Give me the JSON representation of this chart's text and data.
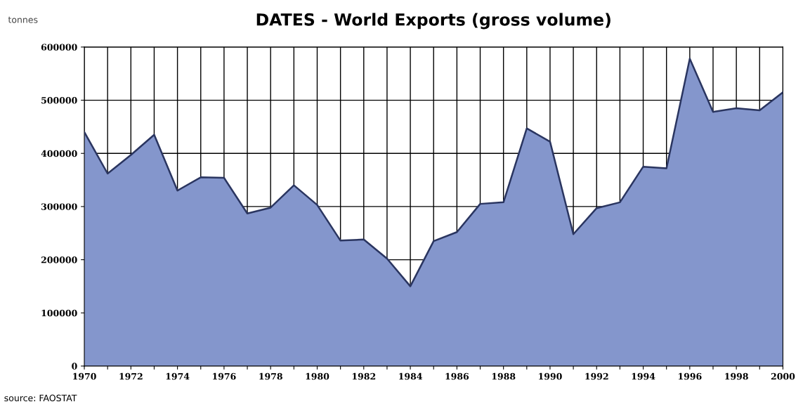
{
  "chart_data": {
    "type": "area",
    "title": "DATES - World Exports (gross volume)",
    "ylabel": "tonnes",
    "x": [
      1970,
      1971,
      1972,
      1973,
      1974,
      1975,
      1976,
      1977,
      1978,
      1979,
      1980,
      1981,
      1982,
      1983,
      1984,
      1985,
      1986,
      1987,
      1988,
      1989,
      1990,
      1991,
      1992,
      1993,
      1994,
      1995,
      1996,
      1997,
      1998,
      1999,
      2000
    ],
    "series": [
      {
        "color": "#8496cc",
        "values": [
          440000,
          362000,
          397000,
          435000,
          330000,
          355000,
          354000,
          287000,
          298000,
          340000,
          303000,
          236000,
          238000,
          202000,
          150000,
          235000,
          252000,
          305000,
          308000,
          447000,
          422000,
          248000,
          297000,
          308000,
          375000,
          372000,
          578000,
          478000,
          485000,
          481000,
          515000
        ]
      }
    ],
    "xlim": [
      1970,
      2000
    ],
    "xticks": [
      1970,
      {
        "value": 1971,
        "label": null
      },
      1972,
      {
        "value": 1973,
        "label": null
      },
      1974,
      {
        "value": 1975,
        "label": null
      },
      1976,
      {
        "value": 1977,
        "label": null
      },
      1978,
      {
        "value": 1979,
        "label": null
      },
      1980,
      {
        "value": 1981,
        "label": null
      },
      1982,
      {
        "value": 1983,
        "label": null
      },
      1984,
      {
        "value": 1985,
        "label": null
      },
      1986,
      {
        "value": 1987,
        "label": null
      },
      1988,
      {
        "value": 1989,
        "label": null
      },
      1990,
      {
        "value": 1991,
        "label": null
      },
      1992,
      {
        "value": 1993,
        "label": null
      },
      1994,
      {
        "value": 1995,
        "label": null
      },
      1996,
      {
        "value": 1997,
        "label": null
      },
      1998,
      {
        "value": 1999,
        "label": null
      },
      2000
    ],
    "ylim": [
      0,
      600000
    ],
    "yticks": [
      0,
      100000,
      200000,
      300000,
      400000,
      500000,
      600000
    ],
    "grid": true,
    "legend": false,
    "annotations": [
      "source: FAOSTAT"
    ]
  }
}
